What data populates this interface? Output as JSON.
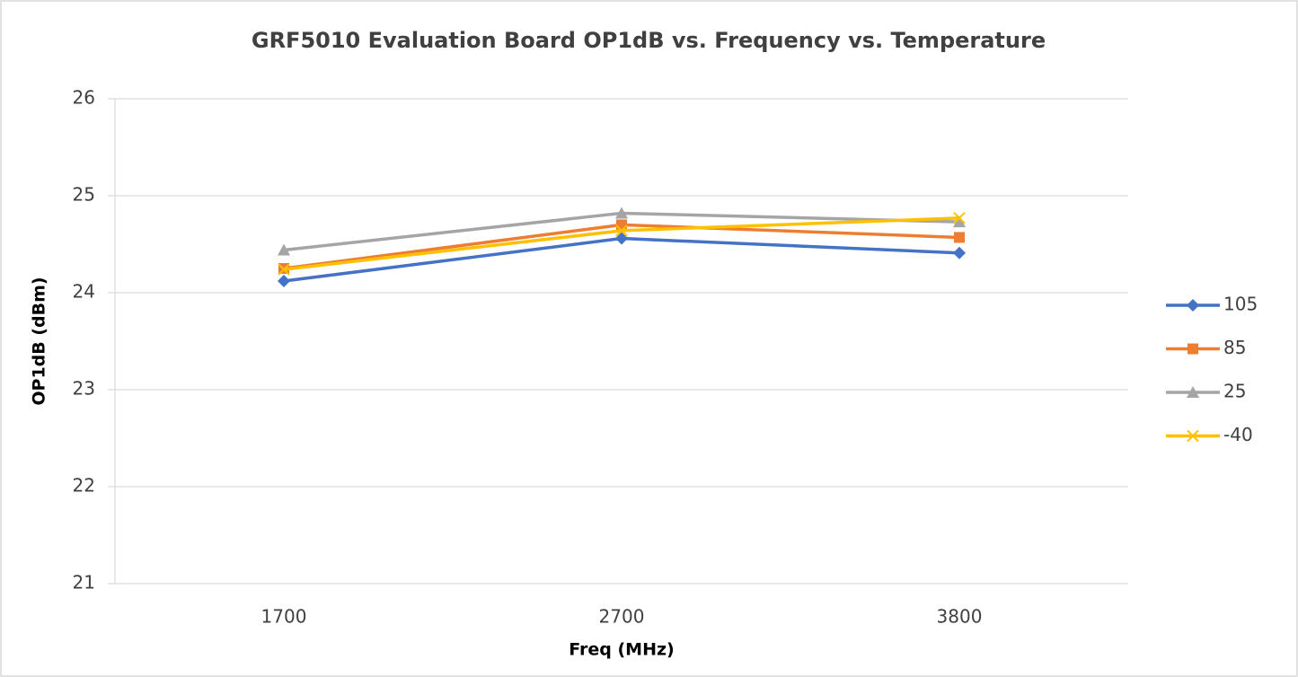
{
  "chart_data": {
    "type": "line",
    "title": "GRF5010 Evaluation Board OP1dB vs. Frequency vs. Temperature",
    "x_label": "Freq (MHz)",
    "y_label": "OP1dB (dBm)",
    "categories": [
      "1700",
      "2700",
      "3800"
    ],
    "series": [
      {
        "name": "105",
        "color": "#4472c4",
        "marker": "diamond",
        "values": [
          24.12,
          24.56,
          24.41
        ]
      },
      {
        "name": "85",
        "color": "#ed7d31",
        "marker": "square",
        "values": [
          24.25,
          24.7,
          24.57
        ]
      },
      {
        "name": "25",
        "color": "#a5a5a5",
        "marker": "triangle",
        "values": [
          24.44,
          24.82,
          24.73
        ]
      },
      {
        "name": "-40",
        "color": "#ffc000",
        "marker": "x",
        "values": [
          24.24,
          24.64,
          24.77
        ]
      }
    ],
    "ylim": [
      21,
      26
    ],
    "yticks": [
      21,
      22,
      23,
      24,
      25,
      26
    ],
    "grid": true,
    "legend": "right"
  }
}
